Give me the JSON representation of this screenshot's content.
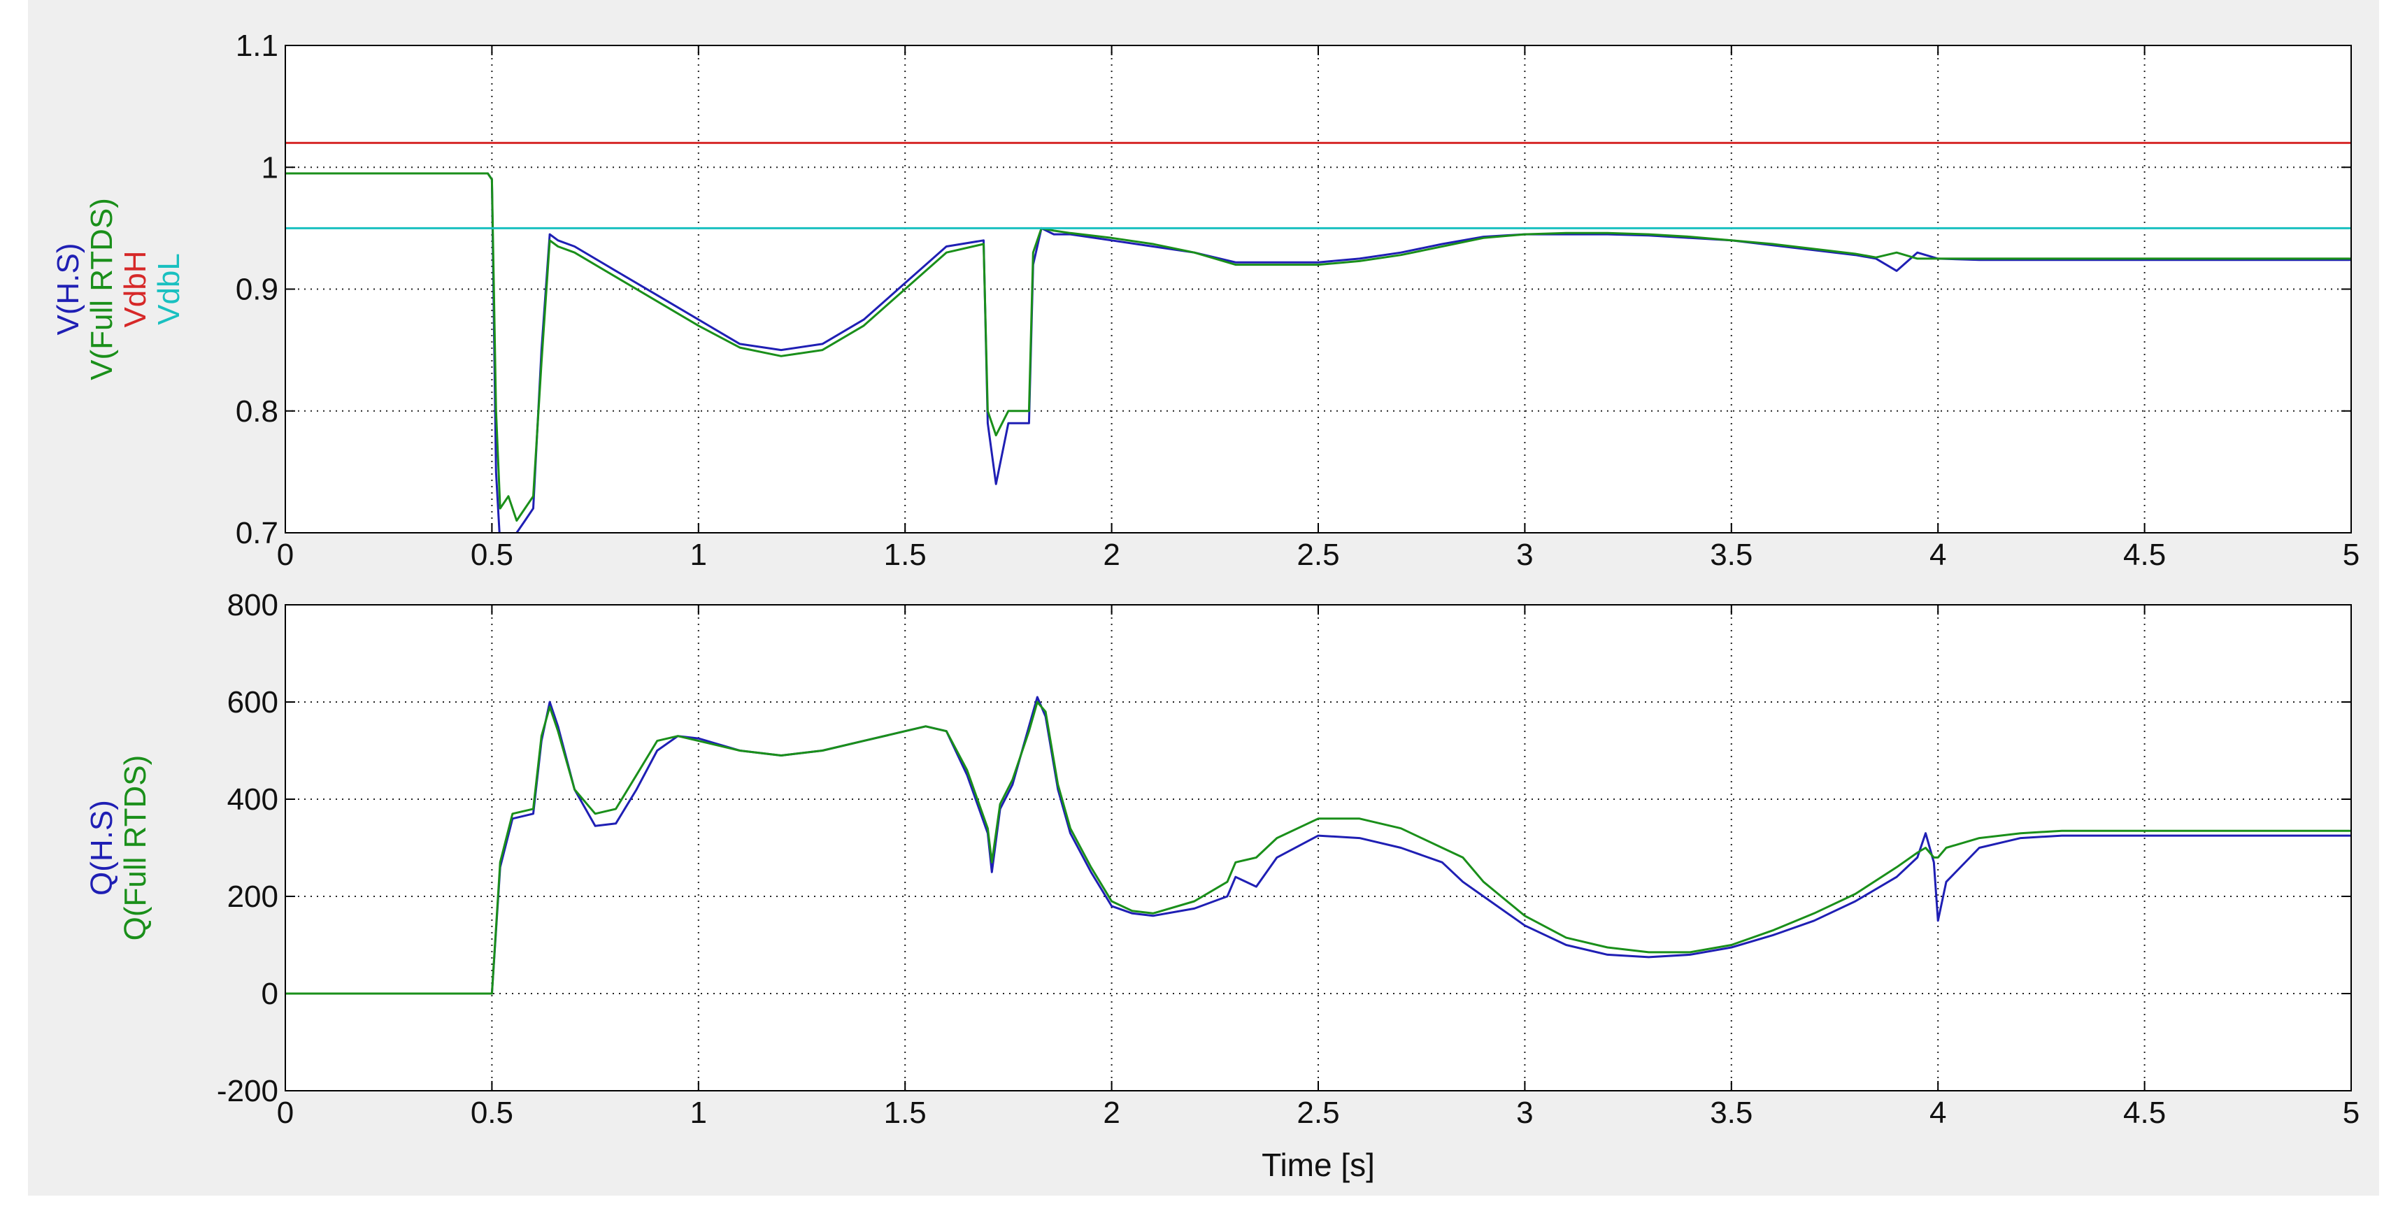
{
  "chart_data": [
    {
      "type": "line",
      "xlim": [
        0,
        5
      ],
      "ylim": [
        0.7,
        1.1
      ],
      "xticks": [
        "0",
        "0.5",
        "1",
        "1.5",
        "2",
        "2.5",
        "3",
        "3.5",
        "4",
        "4.5",
        "5"
      ],
      "yticks": [
        "0.7",
        "0.8",
        "0.9",
        "1",
        "1.1"
      ],
      "grid": true,
      "ylabels": [
        {
          "text": "V(H.S)",
          "color": "#1f1fb4"
        },
        {
          "text": "V(Full RTDS)",
          "color": "#1a8f1a"
        },
        {
          "text": "VdbH",
          "color": "#d62828"
        },
        {
          "text": "VdbL",
          "color": "#19c0c0"
        }
      ],
      "series": [
        {
          "name": "V(H.S)",
          "color": "#1f1fb4",
          "x": [
            0,
            0.49,
            0.5,
            0.51,
            0.52,
            0.54,
            0.56,
            0.58,
            0.6,
            0.62,
            0.64,
            0.66,
            0.7,
            0.8,
            0.9,
            1.0,
            1.1,
            1.2,
            1.3,
            1.4,
            1.5,
            1.6,
            1.69,
            1.7,
            1.72,
            1.75,
            1.8,
            1.81,
            1.83,
            1.86,
            1.9,
            2.0,
            2.1,
            2.2,
            2.3,
            2.4,
            2.5,
            2.6,
            2.7,
            2.8,
            2.9,
            3.0,
            3.1,
            3.2,
            3.3,
            3.4,
            3.5,
            3.6,
            3.7,
            3.8,
            3.85,
            3.9,
            3.95,
            4.0,
            4.1,
            4.5,
            5.0
          ],
          "y": [
            0.995,
            0.995,
            0.99,
            0.75,
            0.69,
            0.68,
            0.7,
            0.71,
            0.72,
            0.85,
            0.945,
            0.94,
            0.935,
            0.915,
            0.895,
            0.875,
            0.855,
            0.85,
            0.855,
            0.875,
            0.905,
            0.935,
            0.94,
            0.79,
            0.74,
            0.79,
            0.79,
            0.92,
            0.95,
            0.945,
            0.945,
            0.94,
            0.935,
            0.93,
            0.922,
            0.922,
            0.922,
            0.925,
            0.93,
            0.937,
            0.943,
            0.945,
            0.945,
            0.945,
            0.944,
            0.942,
            0.94,
            0.936,
            0.932,
            0.928,
            0.925,
            0.915,
            0.93,
            0.925,
            0.924,
            0.924,
            0.924
          ]
        },
        {
          "name": "V(Full RTDS)",
          "color": "#1a8f1a",
          "x": [
            0,
            0.49,
            0.5,
            0.51,
            0.52,
            0.54,
            0.56,
            0.58,
            0.6,
            0.62,
            0.64,
            0.66,
            0.7,
            0.8,
            0.9,
            1.0,
            1.1,
            1.2,
            1.3,
            1.4,
            1.5,
            1.6,
            1.69,
            1.7,
            1.72,
            1.75,
            1.8,
            1.81,
            1.83,
            1.86,
            1.9,
            2.0,
            2.1,
            2.2,
            2.3,
            2.4,
            2.5,
            2.6,
            2.7,
            2.8,
            2.9,
            3.0,
            3.1,
            3.2,
            3.3,
            3.4,
            3.5,
            3.6,
            3.7,
            3.8,
            3.85,
            3.9,
            3.95,
            4.0,
            4.1,
            4.5,
            5.0
          ],
          "y": [
            0.995,
            0.995,
            0.99,
            0.8,
            0.72,
            0.73,
            0.71,
            0.72,
            0.73,
            0.84,
            0.94,
            0.935,
            0.93,
            0.91,
            0.89,
            0.87,
            0.852,
            0.845,
            0.85,
            0.87,
            0.9,
            0.93,
            0.937,
            0.8,
            0.78,
            0.8,
            0.8,
            0.93,
            0.95,
            0.948,
            0.946,
            0.942,
            0.937,
            0.93,
            0.92,
            0.92,
            0.92,
            0.923,
            0.928,
            0.935,
            0.942,
            0.945,
            0.946,
            0.946,
            0.945,
            0.943,
            0.94,
            0.937,
            0.933,
            0.929,
            0.926,
            0.93,
            0.925,
            0.925,
            0.925,
            0.925,
            0.925
          ]
        },
        {
          "name": "VdbH",
          "color": "#d62828",
          "x": [
            0,
            5
          ],
          "y": [
            1.02,
            1.02
          ]
        },
        {
          "name": "VdbL",
          "color": "#19c0c0",
          "x": [
            0,
            5
          ],
          "y": [
            0.95,
            0.95
          ]
        }
      ]
    },
    {
      "type": "line",
      "xlim": [
        0,
        5
      ],
      "ylim": [
        -200,
        800
      ],
      "xticks": [
        "0",
        "0.5",
        "1",
        "1.5",
        "2",
        "2.5",
        "3",
        "3.5",
        "4",
        "4.5",
        "5"
      ],
      "yticks": [
        "-200",
        "0",
        "200",
        "400",
        "600",
        "800"
      ],
      "grid": true,
      "xlabel": "Time [s]",
      "ylabels": [
        {
          "text": "Q(H.S)",
          "color": "#1f1fb4"
        },
        {
          "text": "Q(Full RTDS)",
          "color": "#1a8f1a"
        }
      ],
      "series": [
        {
          "name": "Q(H.S)",
          "color": "#1f1fb4",
          "x": [
            0,
            0.49,
            0.5,
            0.52,
            0.55,
            0.6,
            0.62,
            0.64,
            0.66,
            0.7,
            0.75,
            0.8,
            0.85,
            0.9,
            0.95,
            1.0,
            1.1,
            1.2,
            1.3,
            1.4,
            1.5,
            1.55,
            1.6,
            1.65,
            1.7,
            1.71,
            1.73,
            1.76,
            1.8,
            1.82,
            1.84,
            1.87,
            1.9,
            1.95,
            2.0,
            2.05,
            2.1,
            2.2,
            2.28,
            2.3,
            2.35,
            2.4,
            2.5,
            2.6,
            2.7,
            2.8,
            2.85,
            2.9,
            3.0,
            3.1,
            3.2,
            3.3,
            3.4,
            3.5,
            3.6,
            3.7,
            3.8,
            3.9,
            3.95,
            3.97,
            3.99,
            4.0,
            4.02,
            4.1,
            4.2,
            4.3,
            4.5,
            5.0
          ],
          "y": [
            0,
            0,
            0,
            260,
            360,
            370,
            520,
            600,
            550,
            420,
            345,
            350,
            420,
            500,
            530,
            525,
            500,
            490,
            500,
            520,
            540,
            550,
            540,
            450,
            330,
            250,
            380,
            430,
            550,
            610,
            570,
            420,
            330,
            250,
            180,
            165,
            160,
            175,
            200,
            240,
            220,
            280,
            325,
            320,
            300,
            270,
            230,
            200,
            140,
            100,
            80,
            75,
            80,
            95,
            120,
            150,
            190,
            240,
            280,
            330,
            270,
            150,
            230,
            300,
            320,
            325,
            325,
            325
          ]
        },
        {
          "name": "Q(Full RTDS)",
          "color": "#1a8f1a",
          "x": [
            0,
            0.49,
            0.5,
            0.52,
            0.55,
            0.6,
            0.62,
            0.64,
            0.66,
            0.7,
            0.75,
            0.8,
            0.85,
            0.9,
            0.95,
            1.0,
            1.1,
            1.2,
            1.3,
            1.4,
            1.5,
            1.55,
            1.6,
            1.65,
            1.7,
            1.71,
            1.73,
            1.76,
            1.8,
            1.82,
            1.84,
            1.87,
            1.9,
            1.95,
            2.0,
            2.05,
            2.1,
            2.2,
            2.28,
            2.3,
            2.35,
            2.4,
            2.5,
            2.6,
            2.7,
            2.8,
            2.85,
            2.9,
            3.0,
            3.1,
            3.2,
            3.3,
            3.4,
            3.5,
            3.6,
            3.7,
            3.8,
            3.9,
            3.95,
            3.97,
            3.99,
            4.0,
            4.02,
            4.1,
            4.2,
            4.3,
            4.5,
            5.0
          ],
          "y": [
            0,
            0,
            0,
            270,
            370,
            380,
            530,
            590,
            540,
            420,
            370,
            380,
            450,
            520,
            530,
            520,
            500,
            490,
            500,
            520,
            540,
            550,
            540,
            460,
            340,
            270,
            390,
            440,
            540,
            600,
            580,
            430,
            340,
            260,
            190,
            170,
            165,
            190,
            230,
            270,
            280,
            320,
            360,
            360,
            340,
            300,
            280,
            230,
            160,
            115,
            95,
            85,
            85,
            100,
            130,
            165,
            205,
            260,
            290,
            300,
            280,
            280,
            300,
            320,
            330,
            335,
            335,
            335
          ]
        }
      ]
    }
  ]
}
